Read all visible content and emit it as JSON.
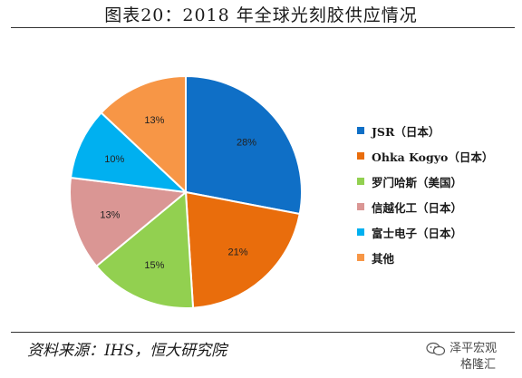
{
  "title": "图表20：2018 年全球光刻胶供应情况",
  "chart_data": {
    "type": "pie",
    "title": "图表20：2018 年全球光刻胶供应情况",
    "labels": [
      "JSR（日本）",
      "Ohka Kogyo（日本）",
      "罗门哈斯（美国）",
      "信越化工（日本）",
      "富士电子（日本）",
      "其他"
    ],
    "values": [
      28,
      21,
      15,
      13,
      10,
      13
    ],
    "value_labels": [
      "28%",
      "21%",
      "15%",
      "13%",
      "10%",
      "13%"
    ],
    "colors": [
      "#0F6FC6",
      "#E96D0C",
      "#92D050",
      "#DA9694",
      "#00B0F0",
      "#F79646"
    ],
    "start": "12 o'clock",
    "direction": "clockwise",
    "legend": "right"
  },
  "footer": {
    "source": "资料来源：IHS，恒大研究院",
    "watermark_line1": "泽平宏观",
    "watermark_line2": "格隆汇"
  }
}
